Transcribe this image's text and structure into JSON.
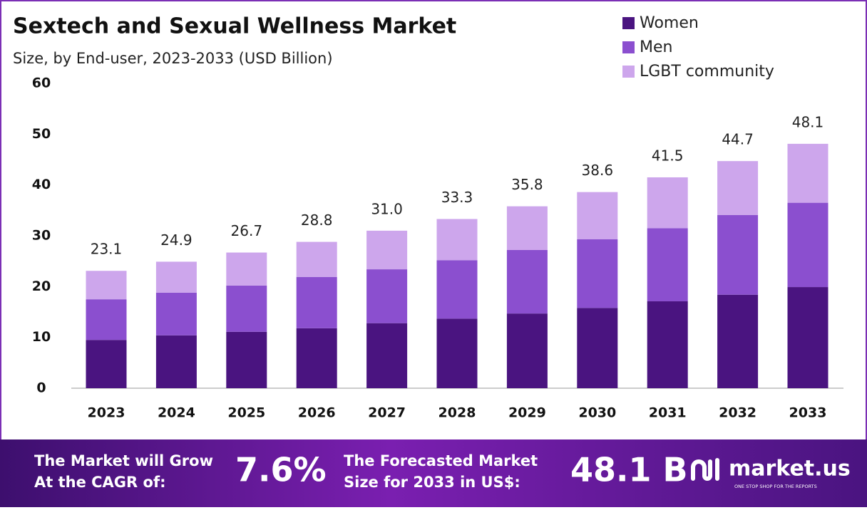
{
  "chart_data": {
    "type": "stacked_bar",
    "title": "Sextech and Sexual Wellness Market",
    "subtitle": "Size, by End-user, 2023-2033 (USD Billion)",
    "categories": [
      "2023",
      "2024",
      "2025",
      "2026",
      "2027",
      "2028",
      "2029",
      "2030",
      "2031",
      "2032",
      "2033"
    ],
    "series": [
      {
        "name": "Women",
        "color": "#4a1480",
        "values": [
          9.5,
          10.4,
          11.1,
          11.8,
          12.8,
          13.7,
          14.7,
          15.8,
          17.1,
          18.4,
          19.9
        ]
      },
      {
        "name": "Men",
        "color": "#8b4fcf",
        "values": [
          8.0,
          8.4,
          9.1,
          10.1,
          10.6,
          11.5,
          12.5,
          13.5,
          14.4,
          15.7,
          16.6
        ]
      },
      {
        "name": "LGBT community",
        "color": "#cda6ec",
        "values": [
          5.6,
          6.1,
          6.5,
          6.9,
          7.6,
          8.1,
          8.6,
          9.3,
          10.0,
          10.6,
          11.6
        ]
      }
    ],
    "totals": {
      "values": [
        23.1,
        24.9,
        26.7,
        28.8,
        31.0,
        33.3,
        35.8,
        38.6,
        41.5,
        44.7,
        48.1
      ],
      "value_labels": [
        "23.1",
        "24.9",
        "26.7",
        "28.8",
        "31.0",
        "33.3",
        "35.8",
        "38.6",
        "41.5",
        "44.7",
        "48.1"
      ]
    },
    "ylim": [
      0,
      60
    ],
    "yticks": [
      0,
      10,
      20,
      30,
      40,
      50,
      60
    ],
    "grid": false,
    "legend": "top-right"
  },
  "footer": {
    "cagr_text": [
      "The Market will Grow",
      "At the CAGR of:"
    ],
    "cagr": "7.6%",
    "forecast_text": [
      "The Forecasted Market",
      "Size for 2033 in US$:"
    ],
    "forecast": "48.1 B",
    "brand": "market.us",
    "tagline": "ONE STOP SHOP FOR THE REPORTS"
  }
}
